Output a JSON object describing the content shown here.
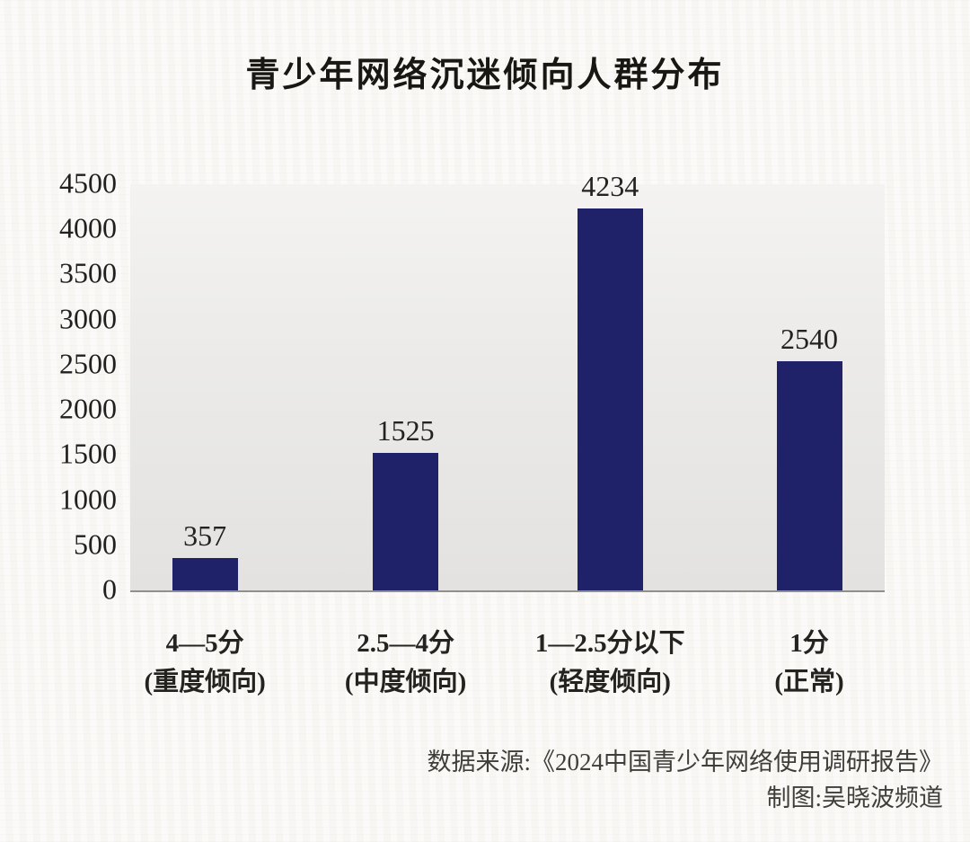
{
  "title": "青少年网络沉迷倾向人群分布",
  "chart_data": {
    "type": "bar",
    "title": "青少年网络沉迷倾向人群分布",
    "categories": [
      "4—5分",
      "2.5—4分",
      "1—2.5分以下",
      "1分"
    ],
    "category_sublabels": [
      "(重度倾向)",
      "(中度倾向)",
      "(轻度倾向)",
      "(正常)"
    ],
    "values": [
      357,
      1525,
      4234,
      2540
    ],
    "value_labels": [
      "357",
      "1525",
      "4234",
      "2540"
    ],
    "ylim": [
      0,
      4500
    ],
    "yticks": [
      0,
      500,
      1000,
      1500,
      2000,
      2500,
      3000,
      3500,
      4000,
      4500
    ],
    "bar_color": "#1f2268",
    "plot_bg_top": "#f4f3f1",
    "plot_bg_bottom": "#e3e2e0",
    "grid": false,
    "legend": false,
    "xlabel": "",
    "ylabel": ""
  },
  "footer": {
    "source": "数据来源:《2024中国青少年网络使用调研报告》",
    "credit": "制图:吴晓波频道"
  },
  "colors": {
    "background": "#f7f6f3",
    "baseline": "#8f8f8d",
    "text": "#1d1c1a"
  }
}
